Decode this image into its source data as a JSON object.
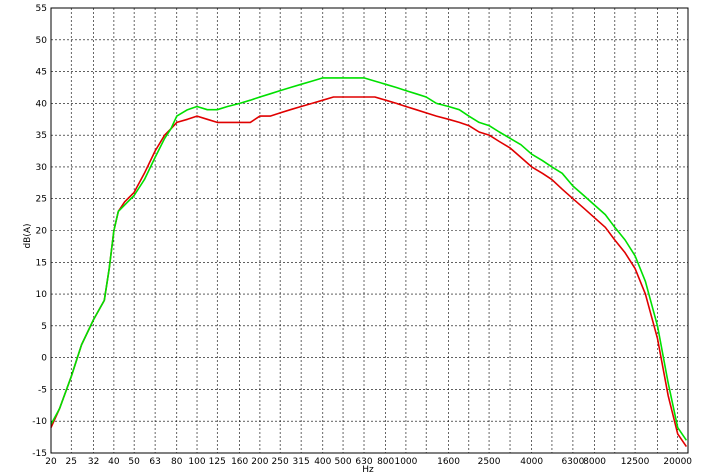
{
  "chart_data": {
    "type": "line",
    "xlabel": "Hz",
    "ylabel": "dB(A)",
    "x_scale": "log",
    "xlim": [
      20,
      22400
    ],
    "ylim": [
      -15,
      55
    ],
    "yticks": [
      -15,
      -10,
      -5,
      0,
      5,
      10,
      15,
      20,
      25,
      30,
      35,
      40,
      45,
      50,
      55
    ],
    "xtick_labels": [
      {
        "v": 20,
        "t": "20"
      },
      {
        "v": 25,
        "t": "25"
      },
      {
        "v": 32,
        "t": "32"
      },
      {
        "v": 40,
        "t": "40"
      },
      {
        "v": 50,
        "t": "50"
      },
      {
        "v": 63,
        "t": "63"
      },
      {
        "v": 80,
        "t": "80"
      },
      {
        "v": 100,
        "t": "100"
      },
      {
        "v": 125,
        "t": "125"
      },
      {
        "v": 160,
        "t": "160"
      },
      {
        "v": 200,
        "t": "200"
      },
      {
        "v": 250,
        "t": "250"
      },
      {
        "v": 315,
        "t": "315"
      },
      {
        "v": 400,
        "t": "400"
      },
      {
        "v": 500,
        "t": "500"
      },
      {
        "v": 630,
        "t": "630"
      },
      {
        "v": 800,
        "t": "800"
      },
      {
        "v": 1000,
        "t": "1000"
      },
      {
        "v": 1600,
        "t": "1600"
      },
      {
        "v": 2500,
        "t": "2500"
      },
      {
        "v": 4000,
        "t": "4000"
      },
      {
        "v": 6300,
        "t": "6300"
      },
      {
        "v": 8000,
        "t": "8000"
      },
      {
        "v": 12500,
        "t": "12500"
      },
      {
        "v": 20000,
        "t": "20000"
      }
    ],
    "xgrid": [
      20,
      25,
      32,
      40,
      50,
      63,
      80,
      100,
      125,
      160,
      200,
      250,
      315,
      400,
      500,
      630,
      800,
      1000,
      1250,
      1600,
      2000,
      2500,
      3150,
      4000,
      5000,
      6300,
      8000,
      10000,
      12500,
      16000,
      20000
    ],
    "grid": true,
    "series": [
      {
        "color": "#e00000",
        "x": [
          20,
          22,
          25,
          28,
          32,
          36,
          38,
          40,
          42,
          45,
          50,
          56,
          63,
          70,
          75,
          80,
          90,
          100,
          112,
          125,
          140,
          160,
          180,
          200,
          224,
          250,
          280,
          315,
          355,
          400,
          450,
          500,
          560,
          630,
          710,
          800,
          900,
          1000,
          1120,
          1250,
          1400,
          1600,
          1800,
          2000,
          2240,
          2500,
          2800,
          3150,
          3550,
          4000,
          4500,
          5000,
          5600,
          6300,
          7100,
          8000,
          9000,
          10000,
          11200,
          12500,
          14000,
          16000,
          18000,
          20000,
          22000
        ],
        "y": [
          -11,
          -8,
          -3,
          2,
          6,
          9,
          14,
          20,
          23,
          24.5,
          26,
          29,
          32.5,
          35,
          36,
          37,
          37.5,
          38,
          37.5,
          37,
          37,
          37,
          37,
          38,
          38,
          38.5,
          39,
          39.5,
          40,
          40.5,
          41,
          41,
          41,
          41,
          41,
          40.5,
          40,
          39.5,
          39,
          38.5,
          38,
          37.5,
          37,
          36.5,
          35.5,
          35,
          34,
          33,
          31.5,
          30,
          29,
          28,
          26.5,
          25,
          23.5,
          22,
          20.5,
          18.5,
          16.5,
          14,
          10,
          3,
          -6,
          -12,
          -14
        ]
      },
      {
        "color": "#00e000",
        "x": [
          20,
          22,
          25,
          28,
          32,
          36,
          38,
          40,
          42,
          45,
          50,
          56,
          63,
          70,
          75,
          80,
          90,
          100,
          112,
          125,
          140,
          160,
          180,
          200,
          224,
          250,
          280,
          315,
          355,
          400,
          450,
          500,
          560,
          630,
          710,
          800,
          900,
          1000,
          1120,
          1250,
          1400,
          1600,
          1800,
          2000,
          2240,
          2500,
          2800,
          3150,
          3550,
          4000,
          4500,
          5000,
          5600,
          6300,
          7100,
          8000,
          9000,
          10000,
          11200,
          12500,
          14000,
          16000,
          18000,
          20000,
          22000
        ],
        "y": [
          -10.5,
          -8,
          -3,
          2,
          6,
          9,
          14,
          20,
          23,
          24,
          25.5,
          28,
          31.5,
          34.5,
          36,
          38,
          39,
          39.5,
          39,
          39,
          39.5,
          40,
          40.5,
          41,
          41.5,
          42,
          42.5,
          43,
          43.5,
          44,
          44,
          44,
          44,
          44,
          43.5,
          43,
          42.5,
          42,
          41.5,
          41,
          40,
          39.5,
          39,
          38,
          37,
          36.5,
          35.5,
          34.5,
          33.5,
          32,
          31,
          30,
          29,
          27,
          25.5,
          24,
          22.5,
          20.5,
          18.5,
          16,
          12,
          5,
          -4,
          -11,
          -13
        ]
      }
    ]
  }
}
